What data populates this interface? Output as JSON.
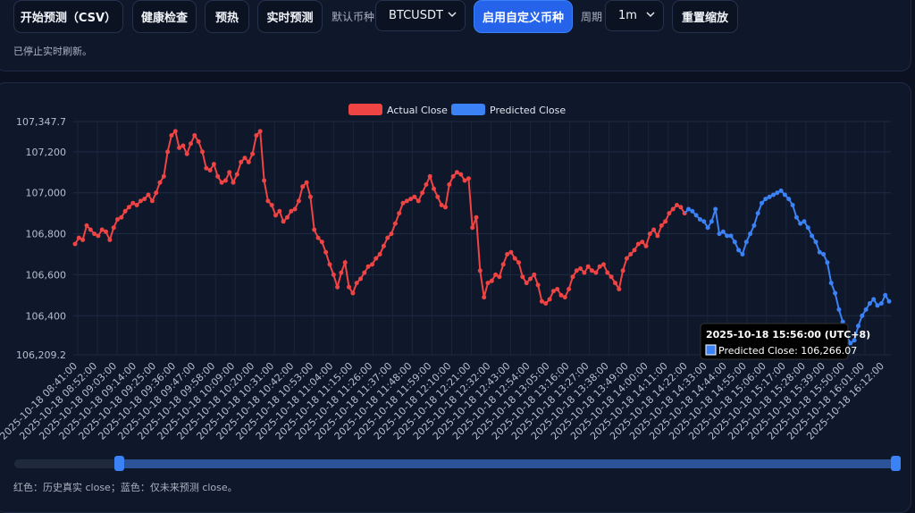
{
  "toolbar": {
    "start_predict_label": "开始预测（CSV）",
    "health_check_label": "健康检查",
    "warmup_label": "预热",
    "realtime_predict_label": "实时预测",
    "default_symbol_label": "默认币种",
    "symbol_value": "BTCUSDT",
    "enable_custom_label": "启用自定义币种",
    "period_label": "周期",
    "period_value": "1m",
    "reset_zoom_label": "重置缩放"
  },
  "status_text": "已停止实时刷新。",
  "footer_note": "红色：历史真实 close；蓝色：仅未来预测 close。",
  "colors": {
    "actual": "#ef4444",
    "predicted": "#3b82f6",
    "accent": "#2563eb",
    "background": "#0b1120",
    "panel": "#0f172a"
  },
  "tooltip": {
    "title": "2025-10-18 15:56:00 (UTC+8)",
    "label": "Predicted Close: 106,266.07"
  },
  "chart_data": {
    "type": "line",
    "ylim": [
      106209.2,
      107347.7
    ],
    "yticks": [
      "107,347.7",
      "107,200",
      "107,000",
      "106,800",
      "106,600",
      "106,400",
      "106,209.2"
    ],
    "x_tick_labels": [
      "2025-10-18 08:41:00",
      "2025-10-18 08:52:00",
      "2025-10-18 09:03:00",
      "2025-10-18 09:14:00",
      "2025-10-18 09:25:00",
      "2025-10-18 09:36:00",
      "2025-10-18 09:47:00",
      "2025-10-18 09:58:00",
      "2025-10-18 10:09:00",
      "2025-10-18 10:20:00",
      "2025-10-18 10:31:00",
      "2025-10-18 10:42:00",
      "2025-10-18 10:53:00",
      "2025-10-18 11:04:00",
      "2025-10-18 11:15:00",
      "2025-10-18 11:26:00",
      "2025-10-18 11:37:00",
      "2025-10-18 11:48:00",
      "2025-10-18 11:59:00",
      "2025-10-18 12:10:00",
      "2025-10-18 12:21:00",
      "2025-10-18 12:32:00",
      "2025-10-18 12:43:00",
      "2025-10-18 12:54:00",
      "2025-10-18 13:05:00",
      "2025-10-18 13:16:00",
      "2025-10-18 13:27:00",
      "2025-10-18 13:38:00",
      "2025-10-18 13:49:00",
      "2025-10-18 14:00:00",
      "2025-10-18 14:11:00",
      "2025-10-18 14:22:00",
      "2025-10-18 14:33:00",
      "2025-10-18 14:44:00",
      "2025-10-18 14:55:00",
      "2025-10-18 15:06:00",
      "2025-10-18 15:17:00",
      "2025-10-18 15:28:00",
      "2025-10-18 15:39:00",
      "2025-10-18 15:50:00",
      "2025-10-18 16:01:00",
      "2025-10-18 16:12:00"
    ],
    "legend": [
      "Actual Close",
      "Predicted Close"
    ],
    "grid": true,
    "legend_position": "top-center",
    "series": [
      {
        "name": "Actual Close",
        "color": "#ef4444",
        "values": [
          106750,
          106780,
          106770,
          106840,
          106820,
          106800,
          106790,
          106820,
          106810,
          106770,
          106830,
          106870,
          106880,
          106910,
          106930,
          106950,
          106940,
          106960,
          106970,
          106990,
          106960,
          107000,
          107050,
          107080,
          107200,
          107280,
          107300,
          107220,
          107230,
          107190,
          107240,
          107280,
          107250,
          107200,
          107120,
          107110,
          107140,
          107080,
          107050,
          107060,
          107100,
          107050,
          107090,
          107150,
          107170,
          107150,
          107190,
          107280,
          107300,
          107060,
          106960,
          106940,
          106890,
          106910,
          106860,
          106880,
          106910,
          106920,
          106960,
          107030,
          107050,
          106980,
          106820,
          106780,
          106760,
          106710,
          106650,
          106600,
          106540,
          106610,
          106660,
          106540,
          106510,
          106560,
          106580,
          106610,
          106640,
          106650,
          106680,
          106700,
          106740,
          106780,
          106800,
          106850,
          106900,
          106950,
          106960,
          106970,
          106980,
          106960,
          107000,
          107040,
          107080,
          107020,
          106980,
          106940,
          106930,
          107040,
          107080,
          107100,
          107090,
          107060,
          107070,
          106830,
          106880,
          106620,
          106490,
          106560,
          106570,
          106600,
          106590,
          106650,
          106700,
          106710,
          106680,
          106660,
          106590,
          106560,
          106580,
          106600,
          106550,
          106470,
          106460,
          106480,
          106520,
          106530,
          106500,
          106490,
          106530,
          106590,
          106620,
          106630,
          106610,
          106640,
          106620,
          106610,
          106640,
          106650,
          106610,
          106590,
          106560,
          106530,
          106620,
          106680,
          106700,
          106720,
          106750,
          106760,
          106740,
          106800,
          106820,
          106790,
          106840,
          106860,
          106900,
          106920,
          106940,
          106930,
          106900
        ]
      },
      {
        "name": "Predicted Close",
        "color": "#3b82f6",
        "values": [
          106920,
          106910,
          106890,
          106870,
          106860,
          106830,
          106860,
          106920,
          106800,
          106810,
          106790,
          106790,
          106760,
          106720,
          106700,
          106760,
          106800,
          106840,
          106900,
          106950,
          106970,
          106980,
          106990,
          107000,
          107010,
          106990,
          106970,
          106940,
          106880,
          106850,
          106860,
          106830,
          106790,
          106760,
          106710,
          106700,
          106660,
          106560,
          106510,
          106430,
          106370,
          106300,
          106266.07,
          106280,
          106350,
          106400,
          106430,
          106460,
          106480,
          106450,
          106460,
          106500,
          106470
        ]
      }
    ]
  }
}
